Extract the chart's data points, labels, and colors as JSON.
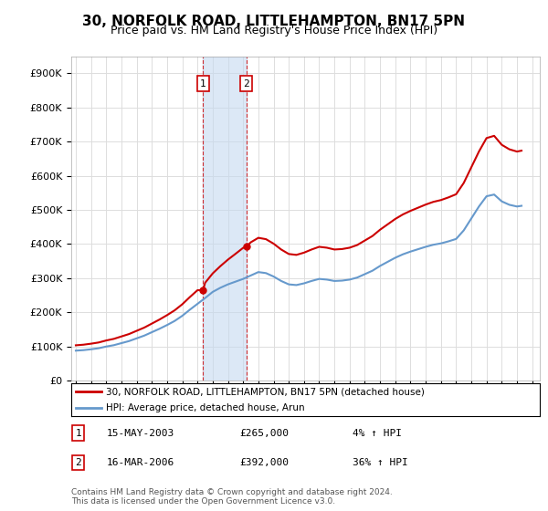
{
  "title": "30, NORFOLK ROAD, LITTLEHAMPTON, BN17 5PN",
  "subtitle": "Price paid vs. HM Land Registry's House Price Index (HPI)",
  "title_fontsize": 11,
  "subtitle_fontsize": 9,
  "ylabel_ticks": [
    "£0",
    "£100K",
    "£200K",
    "£300K",
    "£400K",
    "£500K",
    "£600K",
    "£700K",
    "£800K",
    "£900K"
  ],
  "ytick_values": [
    0,
    100000,
    200000,
    300000,
    400000,
    500000,
    600000,
    700000,
    800000,
    900000
  ],
  "ylim": [
    0,
    950000
  ],
  "xlim_start": 1994.7,
  "xlim_end": 2025.5,
  "sale1_x": 2003.37,
  "sale1_y": 265000,
  "sale2_x": 2006.21,
  "sale2_y": 392000,
  "shade_color": "#c6d9f0",
  "shade_alpha": 0.6,
  "property_line_color": "#cc0000",
  "hpi_line_color": "#6699cc",
  "sale_marker_color": "#cc0000",
  "footnote": "Contains HM Land Registry data © Crown copyright and database right 2024.\nThis data is licensed under the Open Government Licence v3.0.",
  "legend1_label": "30, NORFOLK ROAD, LITTLEHAMPTON, BN17 5PN (detached house)",
  "legend2_label": "HPI: Average price, detached house, Arun",
  "table_rows": [
    {
      "num": "1",
      "date": "15-MAY-2003",
      "price": "£265,000",
      "change": "4% ↑ HPI"
    },
    {
      "num": "2",
      "date": "16-MAR-2006",
      "price": "£392,000",
      "change": "36% ↑ HPI"
    }
  ],
  "years_hpi": [
    1995,
    1995.5,
    1996,
    1996.5,
    1997,
    1997.5,
    1998,
    1998.5,
    1999,
    1999.5,
    2000,
    2000.5,
    2001,
    2001.5,
    2002,
    2002.5,
    2003,
    2003.5,
    2004,
    2004.5,
    2005,
    2005.5,
    2006,
    2006.5,
    2007,
    2007.5,
    2008,
    2008.5,
    2009,
    2009.5,
    2010,
    2010.5,
    2011,
    2011.5,
    2012,
    2012.5,
    2013,
    2013.5,
    2014,
    2014.5,
    2015,
    2015.5,
    2016,
    2016.5,
    2017,
    2017.5,
    2018,
    2018.5,
    2019,
    2019.5,
    2020,
    2020.5,
    2021,
    2021.5,
    2022,
    2022.5,
    2023,
    2023.5,
    2024,
    2024.3
  ],
  "hpi_values": [
    88000,
    89500,
    92000,
    95000,
    100000,
    104000,
    110000,
    116000,
    124000,
    132000,
    142000,
    152000,
    163000,
    175000,
    190000,
    208000,
    225000,
    242000,
    260000,
    272000,
    282000,
    290000,
    298000,
    308000,
    318000,
    315000,
    305000,
    292000,
    282000,
    280000,
    285000,
    292000,
    298000,
    296000,
    292000,
    293000,
    296000,
    302000,
    312000,
    322000,
    336000,
    348000,
    360000,
    370000,
    378000,
    385000,
    392000,
    398000,
    402000,
    408000,
    415000,
    440000,
    475000,
    510000,
    540000,
    545000,
    525000,
    515000,
    510000,
    512000
  ]
}
